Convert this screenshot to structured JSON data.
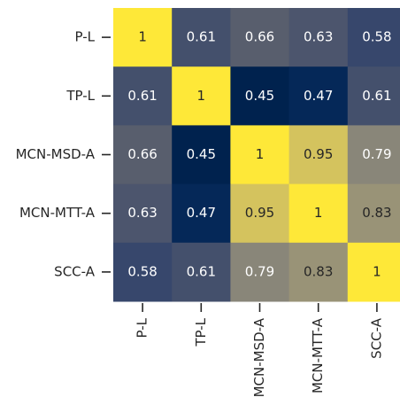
{
  "chart_data": {
    "type": "heatmap",
    "colormap": "cividis",
    "rows": [
      "P-L",
      "TP-L",
      "MCN-MSD-A",
      "MCN-MTT-A",
      "SCC-A"
    ],
    "columns": [
      "P-L",
      "TP-L",
      "MCN-MSD-A",
      "MCN-MTT-A",
      "SCC-A"
    ],
    "values": [
      [
        1,
        0.61,
        0.66,
        0.63,
        0.58
      ],
      [
        0.61,
        1,
        0.45,
        0.47,
        0.61
      ],
      [
        0.66,
        0.45,
        1,
        0.95,
        0.79
      ],
      [
        0.63,
        0.47,
        0.95,
        1,
        0.83
      ],
      [
        0.58,
        0.61,
        0.79,
        0.83,
        1
      ]
    ]
  }
}
